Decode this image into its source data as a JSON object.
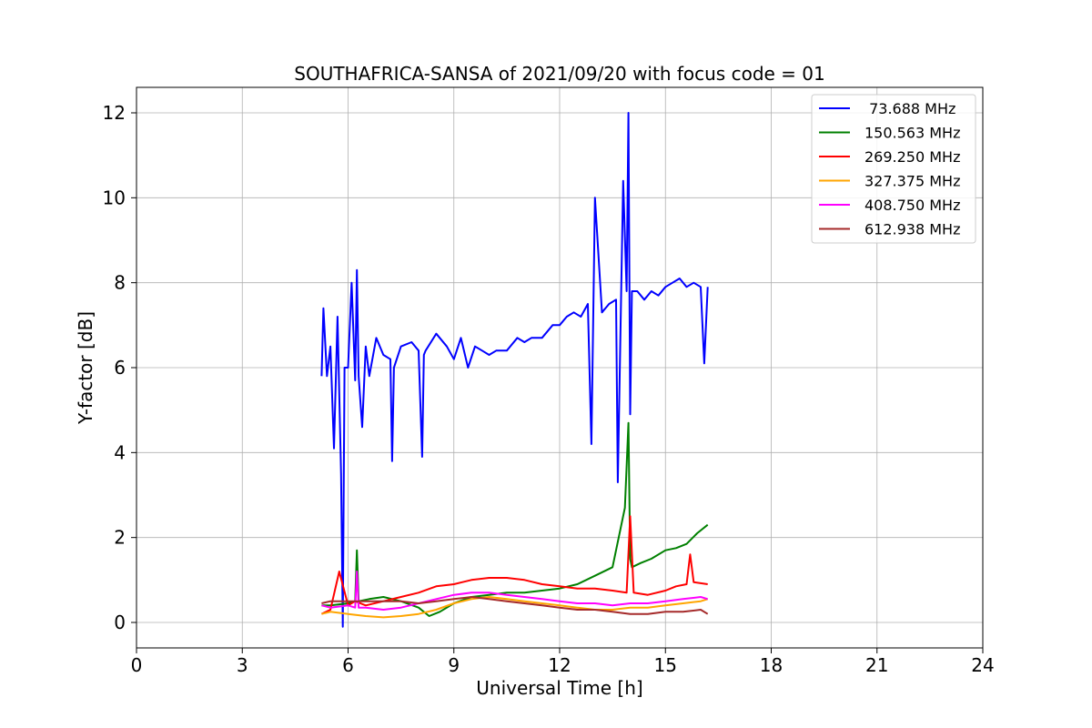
{
  "chart_data": {
    "type": "line",
    "title": "SOUTHAFRICA-SANSA of 2021/09/20 with focus code = 01",
    "xlabel": "Universal Time [h]",
    "ylabel": "Y-factor [dB]",
    "xlim": [
      0,
      24
    ],
    "ylim": [
      -0.6,
      12.6
    ],
    "xticks": [
      0,
      3,
      6,
      9,
      12,
      15,
      18,
      21,
      24
    ],
    "yticks": [
      0,
      2,
      4,
      6,
      8,
      10,
      12
    ],
    "grid": true,
    "legend_position": "top-right",
    "series": [
      {
        "name": " 73.688 MHz",
        "color": "#0000ff",
        "x": [
          5.25,
          5.3,
          5.4,
          5.5,
          5.6,
          5.7,
          5.8,
          5.85,
          5.9,
          6.0,
          6.1,
          6.2,
          6.25,
          6.3,
          6.4,
          6.5,
          6.6,
          6.8,
          7.0,
          7.2,
          7.25,
          7.3,
          7.5,
          7.8,
          8.0,
          8.1,
          8.15,
          8.2,
          8.5,
          8.8,
          9.0,
          9.2,
          9.4,
          9.6,
          9.8,
          10.0,
          10.2,
          10.5,
          10.8,
          11.0,
          11.2,
          11.5,
          11.8,
          12.0,
          12.2,
          12.4,
          12.6,
          12.8,
          12.9,
          13.0,
          13.2,
          13.4,
          13.6,
          13.65,
          13.8,
          13.9,
          13.95,
          14.0,
          14.05,
          14.2,
          14.4,
          14.6,
          14.8,
          15.0,
          15.2,
          15.4,
          15.6,
          15.8,
          16.0,
          16.1,
          16.2
        ],
        "y": [
          5.8,
          7.4,
          5.8,
          6.5,
          4.1,
          7.2,
          3.5,
          -0.1,
          6.0,
          6.0,
          8.0,
          5.7,
          8.3,
          5.8,
          4.6,
          6.5,
          5.8,
          6.7,
          6.3,
          6.2,
          3.8,
          6.0,
          6.5,
          6.6,
          6.4,
          3.9,
          6.3,
          6.4,
          6.8,
          6.5,
          6.2,
          6.7,
          6.0,
          6.5,
          6.4,
          6.3,
          6.4,
          6.4,
          6.7,
          6.6,
          6.7,
          6.7,
          7.0,
          7.0,
          7.2,
          7.3,
          7.2,
          7.5,
          4.2,
          10.0,
          7.3,
          7.5,
          7.6,
          3.3,
          10.4,
          7.8,
          12.0,
          4.9,
          7.8,
          7.8,
          7.6,
          7.8,
          7.7,
          7.9,
          8.0,
          8.1,
          7.9,
          8.0,
          7.9,
          6.1,
          7.9
        ]
      },
      {
        "name": "150.563 MHz",
        "color": "#008000",
        "x": [
          5.25,
          5.5,
          6.0,
          6.2,
          6.25,
          6.3,
          6.6,
          7.0,
          7.5,
          8.0,
          8.3,
          8.6,
          9.0,
          9.5,
          10.0,
          10.5,
          11.0,
          11.5,
          12.0,
          12.5,
          13.0,
          13.5,
          13.85,
          13.95,
          14.0,
          14.05,
          14.3,
          14.6,
          15.0,
          15.3,
          15.6,
          15.9,
          16.2
        ],
        "y": [
          0.4,
          0.4,
          0.45,
          0.5,
          1.7,
          0.5,
          0.55,
          0.6,
          0.5,
          0.35,
          0.15,
          0.25,
          0.45,
          0.6,
          0.65,
          0.7,
          0.7,
          0.75,
          0.8,
          0.9,
          1.1,
          1.3,
          2.7,
          4.7,
          1.5,
          1.3,
          1.4,
          1.5,
          1.7,
          1.75,
          1.85,
          2.1,
          2.3
        ]
      },
      {
        "name": "269.250 MHz",
        "color": "#ff0000",
        "x": [
          5.25,
          5.5,
          5.75,
          6.0,
          6.2,
          6.5,
          7.0,
          7.5,
          8.0,
          8.5,
          9.0,
          9.5,
          10.0,
          10.5,
          11.0,
          11.5,
          12.0,
          12.5,
          13.0,
          13.5,
          13.9,
          14.0,
          14.1,
          14.5,
          15.0,
          15.3,
          15.6,
          15.7,
          15.8,
          16.2
        ],
        "y": [
          0.2,
          0.3,
          1.2,
          0.4,
          0.5,
          0.4,
          0.5,
          0.6,
          0.7,
          0.85,
          0.9,
          1.0,
          1.05,
          1.05,
          1.0,
          0.9,
          0.85,
          0.8,
          0.8,
          0.75,
          0.7,
          2.5,
          0.7,
          0.65,
          0.75,
          0.85,
          0.9,
          1.6,
          0.95,
          0.9
        ]
      },
      {
        "name": "327.375 MHz",
        "color": "#ffa500",
        "x": [
          5.25,
          5.5,
          6.0,
          6.5,
          7.0,
          7.5,
          8.0,
          8.5,
          9.0,
          9.5,
          10.0,
          10.5,
          11.0,
          11.5,
          12.0,
          12.5,
          13.0,
          13.5,
          14.0,
          14.5,
          15.0,
          15.5,
          16.0,
          16.2
        ],
        "y": [
          0.2,
          0.25,
          0.2,
          0.15,
          0.12,
          0.15,
          0.2,
          0.3,
          0.45,
          0.55,
          0.6,
          0.55,
          0.5,
          0.45,
          0.4,
          0.35,
          0.3,
          0.3,
          0.35,
          0.35,
          0.4,
          0.45,
          0.5,
          0.55
        ]
      },
      {
        "name": "408.750 MHz",
        "color": "#ff00ff",
        "x": [
          5.25,
          5.5,
          6.0,
          6.2,
          6.25,
          6.3,
          6.5,
          7.0,
          7.5,
          8.0,
          8.5,
          9.0,
          9.5,
          10.0,
          10.5,
          11.0,
          11.5,
          12.0,
          12.5,
          13.0,
          13.5,
          14.0,
          14.5,
          15.0,
          15.5,
          16.0,
          16.2
        ],
        "y": [
          0.4,
          0.35,
          0.4,
          0.35,
          1.2,
          0.35,
          0.35,
          0.3,
          0.35,
          0.45,
          0.55,
          0.65,
          0.7,
          0.7,
          0.65,
          0.6,
          0.55,
          0.5,
          0.45,
          0.45,
          0.4,
          0.45,
          0.45,
          0.5,
          0.55,
          0.6,
          0.55
        ]
      },
      {
        "name": "612.938 MHz",
        "color": "#a52a2a",
        "x": [
          5.25,
          5.5,
          6.0,
          6.5,
          7.0,
          7.5,
          8.0,
          8.5,
          9.0,
          9.5,
          10.0,
          10.5,
          11.0,
          11.5,
          12.0,
          12.5,
          13.0,
          13.5,
          14.0,
          14.5,
          15.0,
          15.5,
          16.0,
          16.2
        ],
        "y": [
          0.45,
          0.5,
          0.5,
          0.5,
          0.5,
          0.5,
          0.45,
          0.5,
          0.55,
          0.6,
          0.55,
          0.5,
          0.45,
          0.4,
          0.35,
          0.3,
          0.3,
          0.25,
          0.2,
          0.2,
          0.25,
          0.25,
          0.3,
          0.2
        ]
      }
    ]
  }
}
